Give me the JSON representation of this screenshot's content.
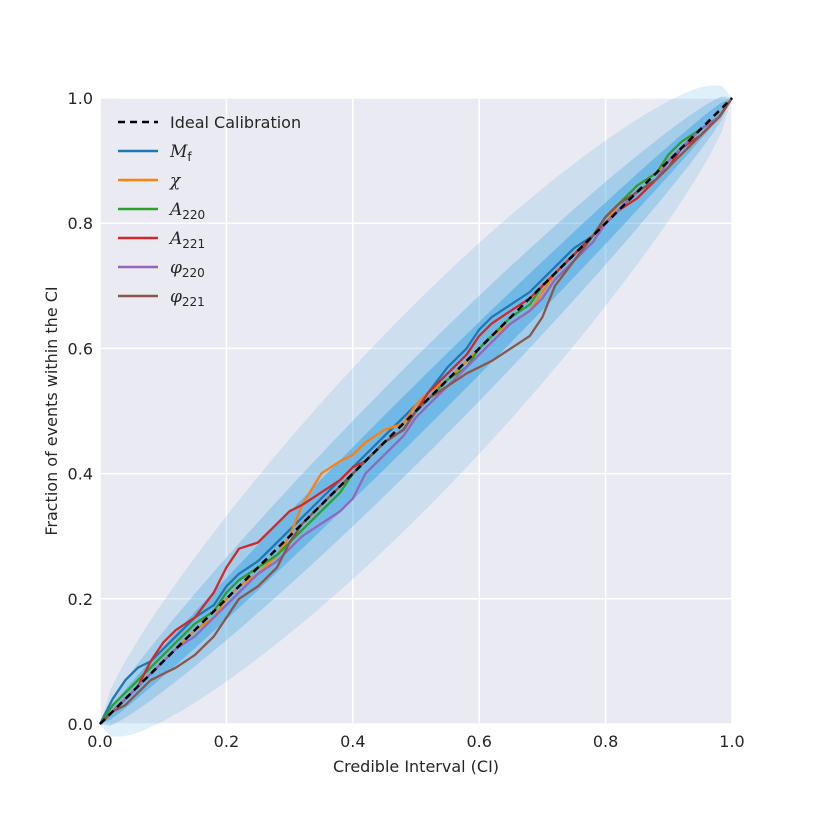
{
  "chart_data": {
    "type": "line",
    "xlabel": "Credible Interval (CI)",
    "ylabel": "Fraction of events within the CI",
    "xlim": [
      0,
      1
    ],
    "ylim": [
      0,
      1
    ],
    "xticks": [
      "0.0",
      "0.2",
      "0.4",
      "0.6",
      "0.8",
      "1.0"
    ],
    "yticks": [
      "0.0",
      "0.2",
      "0.4",
      "0.6",
      "0.8",
      "1.0"
    ],
    "grid": true,
    "legend_position": "top-left",
    "background_color": "#eaeaf2",
    "confidence_band_color": "#3ba3e0",
    "confidence_band_half_widths": [
      0.012,
      0.024,
      0.048
    ],
    "ideal": {
      "name": "Ideal Calibration",
      "color": "#000000",
      "x": [
        0,
        1
      ],
      "y": [
        0,
        1
      ]
    },
    "series": [
      {
        "name_main": "M",
        "name_sub": "f",
        "color": "#1f77b4",
        "x": [
          0,
          0.02,
          0.04,
          0.06,
          0.08,
          0.1,
          0.12,
          0.15,
          0.18,
          0.2,
          0.22,
          0.25,
          0.28,
          0.3,
          0.32,
          0.35,
          0.38,
          0.4,
          0.42,
          0.45,
          0.48,
          0.5,
          0.52,
          0.55,
          0.58,
          0.6,
          0.62,
          0.65,
          0.68,
          0.7,
          0.72,
          0.75,
          0.78,
          0.8,
          0.82,
          0.85,
          0.88,
          0.9,
          0.92,
          0.95,
          0.98,
          1.0
        ],
        "y": [
          0,
          0.04,
          0.07,
          0.09,
          0.1,
          0.12,
          0.14,
          0.17,
          0.19,
          0.22,
          0.24,
          0.26,
          0.29,
          0.31,
          0.33,
          0.36,
          0.39,
          0.41,
          0.43,
          0.46,
          0.49,
          0.51,
          0.53,
          0.57,
          0.6,
          0.63,
          0.65,
          0.67,
          0.69,
          0.71,
          0.73,
          0.76,
          0.78,
          0.8,
          0.82,
          0.85,
          0.87,
          0.89,
          0.92,
          0.94,
          0.97,
          1.0
        ]
      },
      {
        "name_main": "χ",
        "name_sub": "",
        "color": "#ff7f0e",
        "x": [
          0,
          0.02,
          0.04,
          0.06,
          0.08,
          0.1,
          0.12,
          0.15,
          0.18,
          0.2,
          0.22,
          0.25,
          0.28,
          0.3,
          0.32,
          0.35,
          0.38,
          0.4,
          0.42,
          0.45,
          0.48,
          0.5,
          0.52,
          0.55,
          0.58,
          0.6,
          0.62,
          0.65,
          0.68,
          0.7,
          0.72,
          0.75,
          0.78,
          0.8,
          0.82,
          0.85,
          0.88,
          0.9,
          0.92,
          0.95,
          0.98,
          1.0
        ],
        "y": [
          0,
          0.02,
          0.04,
          0.06,
          0.08,
          0.1,
          0.12,
          0.15,
          0.17,
          0.2,
          0.22,
          0.24,
          0.27,
          0.3,
          0.35,
          0.4,
          0.42,
          0.43,
          0.45,
          0.47,
          0.48,
          0.51,
          0.53,
          0.55,
          0.58,
          0.6,
          0.62,
          0.64,
          0.66,
          0.69,
          0.72,
          0.75,
          0.78,
          0.8,
          0.83,
          0.86,
          0.88,
          0.9,
          0.92,
          0.94,
          0.97,
          1.0
        ]
      },
      {
        "name_main": "A",
        "name_sub": "220",
        "color": "#2ca02c",
        "x": [
          0,
          0.02,
          0.04,
          0.06,
          0.08,
          0.1,
          0.12,
          0.15,
          0.18,
          0.2,
          0.22,
          0.25,
          0.28,
          0.3,
          0.32,
          0.35,
          0.38,
          0.4,
          0.42,
          0.45,
          0.48,
          0.5,
          0.52,
          0.55,
          0.58,
          0.6,
          0.62,
          0.65,
          0.68,
          0.7,
          0.72,
          0.75,
          0.78,
          0.8,
          0.82,
          0.85,
          0.88,
          0.9,
          0.92,
          0.95,
          0.98,
          1.0
        ],
        "y": [
          0,
          0.03,
          0.05,
          0.07,
          0.09,
          0.11,
          0.13,
          0.16,
          0.18,
          0.21,
          0.23,
          0.25,
          0.27,
          0.29,
          0.31,
          0.34,
          0.37,
          0.4,
          0.42,
          0.45,
          0.47,
          0.5,
          0.52,
          0.55,
          0.57,
          0.6,
          0.62,
          0.65,
          0.67,
          0.7,
          0.72,
          0.75,
          0.78,
          0.81,
          0.83,
          0.86,
          0.88,
          0.91,
          0.93,
          0.95,
          0.97,
          1.0
        ]
      },
      {
        "name_main": "A",
        "name_sub": "221",
        "color": "#d62728",
        "x": [
          0,
          0.02,
          0.04,
          0.06,
          0.08,
          0.1,
          0.12,
          0.15,
          0.18,
          0.2,
          0.22,
          0.25,
          0.28,
          0.3,
          0.32,
          0.35,
          0.38,
          0.4,
          0.42,
          0.45,
          0.48,
          0.5,
          0.52,
          0.55,
          0.58,
          0.6,
          0.62,
          0.65,
          0.68,
          0.7,
          0.72,
          0.75,
          0.78,
          0.8,
          0.82,
          0.85,
          0.88,
          0.9,
          0.92,
          0.95,
          0.98,
          1.0
        ],
        "y": [
          0,
          0.02,
          0.04,
          0.06,
          0.1,
          0.13,
          0.15,
          0.17,
          0.21,
          0.25,
          0.28,
          0.29,
          0.32,
          0.34,
          0.35,
          0.37,
          0.39,
          0.41,
          0.42,
          0.45,
          0.47,
          0.5,
          0.53,
          0.56,
          0.59,
          0.62,
          0.64,
          0.66,
          0.68,
          0.7,
          0.72,
          0.75,
          0.78,
          0.8,
          0.82,
          0.84,
          0.87,
          0.89,
          0.92,
          0.94,
          0.97,
          1.0
        ]
      },
      {
        "name_main": "φ",
        "name_sub": "220",
        "color": "#9467bd",
        "x": [
          0,
          0.02,
          0.04,
          0.06,
          0.08,
          0.1,
          0.12,
          0.15,
          0.18,
          0.2,
          0.22,
          0.25,
          0.28,
          0.3,
          0.32,
          0.35,
          0.38,
          0.4,
          0.42,
          0.45,
          0.48,
          0.5,
          0.52,
          0.55,
          0.58,
          0.6,
          0.62,
          0.65,
          0.68,
          0.7,
          0.72,
          0.75,
          0.78,
          0.8,
          0.82,
          0.85,
          0.88,
          0.9,
          0.92,
          0.95,
          0.98,
          1.0
        ],
        "y": [
          0,
          0.02,
          0.04,
          0.06,
          0.08,
          0.1,
          0.12,
          0.14,
          0.17,
          0.19,
          0.21,
          0.24,
          0.26,
          0.28,
          0.3,
          0.32,
          0.34,
          0.36,
          0.4,
          0.43,
          0.46,
          0.49,
          0.51,
          0.54,
          0.57,
          0.59,
          0.61,
          0.64,
          0.66,
          0.68,
          0.71,
          0.74,
          0.77,
          0.8,
          0.82,
          0.85,
          0.87,
          0.9,
          0.92,
          0.95,
          0.97,
          1.0
        ]
      },
      {
        "name_main": "φ",
        "name_sub": "221",
        "color": "#8c564b",
        "x": [
          0,
          0.02,
          0.04,
          0.06,
          0.08,
          0.1,
          0.12,
          0.15,
          0.18,
          0.2,
          0.22,
          0.25,
          0.28,
          0.3,
          0.32,
          0.35,
          0.38,
          0.4,
          0.42,
          0.45,
          0.48,
          0.5,
          0.52,
          0.55,
          0.58,
          0.6,
          0.62,
          0.65,
          0.68,
          0.7,
          0.72,
          0.75,
          0.78,
          0.8,
          0.82,
          0.85,
          0.88,
          0.9,
          0.92,
          0.95,
          0.98,
          1.0
        ],
        "y": [
          0,
          0.02,
          0.03,
          0.05,
          0.07,
          0.08,
          0.09,
          0.11,
          0.14,
          0.17,
          0.2,
          0.22,
          0.25,
          0.29,
          0.32,
          0.35,
          0.38,
          0.4,
          0.42,
          0.45,
          0.47,
          0.5,
          0.52,
          0.54,
          0.56,
          0.57,
          0.58,
          0.6,
          0.62,
          0.65,
          0.7,
          0.74,
          0.78,
          0.81,
          0.83,
          0.85,
          0.87,
          0.89,
          0.91,
          0.94,
          0.97,
          1.0
        ]
      }
    ]
  }
}
